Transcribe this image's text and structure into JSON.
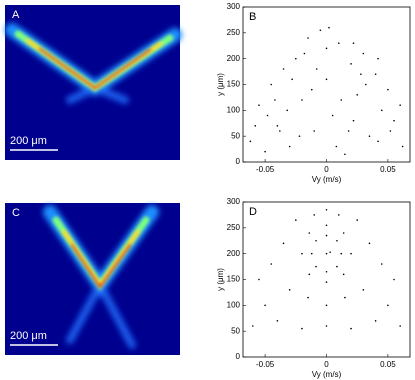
{
  "figure": {
    "panel_a": {
      "label": "A",
      "scale_bar": "200 μm"
    },
    "panel_c": {
      "label": "C",
      "scale_bar": "200 μm"
    }
  },
  "chart_data": [
    {
      "type": "scatter",
      "label": "B",
      "x_label": "Vy (m/s)",
      "y_label": "y (μm)",
      "color": "#000000",
      "xlim": [
        -0.068,
        0.068
      ],
      "ylim": [
        0,
        300
      ],
      "xticks": [
        -0.05,
        0,
        0.05
      ],
      "yticks": [
        0,
        50,
        100,
        150,
        200,
        250,
        300
      ],
      "x": [
        -0.062,
        -0.055,
        -0.05,
        -0.045,
        -0.04,
        -0.035,
        -0.03,
        -0.025,
        -0.02,
        -0.015,
        -0.01,
        -0.005,
        0,
        0.005,
        0.01,
        0.015,
        0.02,
        0.025,
        0.03,
        0.035,
        0.04,
        0.045,
        0.05,
        0.055,
        0.062,
        -0.058,
        -0.048,
        -0.038,
        -0.028,
        -0.018,
        -0.008,
        0.002,
        0.012,
        0.022,
        0.032,
        0.042,
        0.052,
        0.06,
        -0.042,
        -0.022,
        0.0,
        0.022,
        0.042,
        -0.012,
        0.008,
        0.028,
        -0.032,
        0.018
      ],
      "y": [
        40,
        110,
        20,
        150,
        70,
        180,
        30,
        200,
        120,
        240,
        60,
        255,
        160,
        90,
        230,
        15,
        190,
        130,
        210,
        50,
        170,
        100,
        140,
        80,
        30,
        70,
        90,
        60,
        160,
        210,
        180,
        260,
        120,
        80,
        150,
        40,
        60,
        110,
        120,
        50,
        220,
        230,
        200,
        140,
        30,
        170,
        100,
        60
      ]
    },
    {
      "type": "scatter",
      "label": "D",
      "x_label": "Vy (m/s)",
      "y_label": "y (μm)",
      "color": "#000000",
      "xlim": [
        -0.068,
        0.068
      ],
      "ylim": [
        0,
        300
      ],
      "xticks": [
        -0.05,
        0,
        0.05
      ],
      "yticks": [
        0,
        50,
        100,
        150,
        200,
        250,
        300
      ],
      "x": [
        0,
        0.012,
        0,
        -0.012,
        0.0085,
        -0.0085,
        0.0085,
        -0.0085,
        0,
        0.02,
        0,
        -0.02,
        0.014,
        -0.014,
        0.014,
        -0.014,
        0,
        0.003,
        -0.06,
        -0.05,
        -0.045,
        -0.035,
        -0.025,
        0,
        0.025,
        0.035,
        0.045,
        0.05,
        0.06,
        -0.03,
        0.03,
        -0.015,
        0.015,
        0,
        -0.04,
        0.04,
        -0.02,
        0.02,
        0,
        -0.055,
        0.055,
        -0.01,
        0.01
      ],
      "y": [
        235,
        200,
        165,
        200,
        225,
        225,
        175,
        175,
        255,
        200,
        145,
        200,
        240,
        240,
        160,
        160,
        200,
        203,
        60,
        100,
        180,
        220,
        265,
        285,
        265,
        220,
        180,
        100,
        60,
        130,
        130,
        115,
        115,
        100,
        70,
        70,
        55,
        55,
        60,
        150,
        150,
        275,
        275
      ]
    }
  ]
}
